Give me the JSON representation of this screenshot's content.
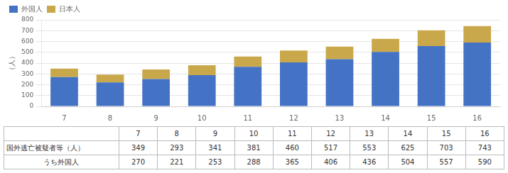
{
  "chart_data": [
    {
      "type": "bar",
      "categories": [
        "7",
        "8",
        "9",
        "10",
        "11",
        "12",
        "13",
        "14",
        "15",
        "16"
      ],
      "series": [
        {
          "name": "外国人",
          "color": "#4472C4",
          "values": [
            270,
            221,
            253,
            288,
            365,
            406,
            436,
            504,
            557,
            590
          ]
        },
        {
          "name": "日本人",
          "color": "#C9A84C",
          "values": [
            79,
            72,
            88,
            93,
            95,
            111,
            117,
            121,
            146,
            153
          ]
        }
      ],
      "y_label": "（人）",
      "stacked": true,
      "ylim": [
        0,
        800
      ],
      "yticks": [
        0,
        100,
        200,
        300,
        400,
        500,
        600,
        700,
        800
      ],
      "grid": true,
      "legend": "upper left"
    },
    {
      "type": "table",
      "categories": [
        "7",
        "8",
        "9",
        "10",
        "11",
        "12",
        "13",
        "14",
        "15",
        "16"
      ],
      "series": [
        {
          "name": "国外逃亡被疑者等（人）",
          "values": [
            349,
            293,
            341,
            381,
            460,
            517,
            553,
            625,
            703,
            743
          ]
        },
        {
          "name": "うち外国人",
          "values": [
            270,
            221,
            253,
            288,
            365,
            406,
            436,
            504,
            557,
            590
          ]
        }
      ]
    }
  ]
}
